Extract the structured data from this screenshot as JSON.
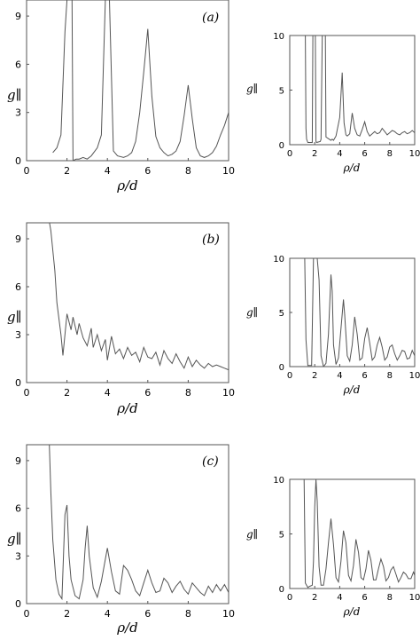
{
  "chart_data": [
    {
      "id": "a-left",
      "type": "line",
      "panel_label": "(a)",
      "xlabel": "ρ/d",
      "ylabel": "g∥",
      "xlim": [
        0,
        10
      ],
      "ylim": [
        0,
        10
      ],
      "xticks": [
        "0",
        "2",
        "4",
        "6",
        "8",
        "10"
      ],
      "yticks": [
        "0",
        "3",
        "6",
        "9"
      ],
      "series": [
        {
          "x": [
            1.3,
            1.5,
            1.7,
            1.9,
            2.0,
            2.05,
            2.1,
            2.25,
            2.3,
            2.45,
            2.6,
            2.8,
            3.0,
            3.2,
            3.5,
            3.7,
            3.9,
            4.0,
            4.1,
            4.3,
            4.5,
            4.8,
            5.0,
            5.2,
            5.4,
            5.6,
            5.8,
            6.0,
            6.2,
            6.4,
            6.6,
            6.8,
            7.0,
            7.2,
            7.4,
            7.6,
            7.8,
            8.0,
            8.2,
            8.4,
            8.6,
            8.8,
            9.0,
            9.2,
            9.4,
            9.6,
            9.8,
            10.0
          ],
          "y": [
            0.5,
            0.8,
            1.6,
            8.0,
            10.0,
            10.0,
            10.0,
            10.0,
            0.0,
            0.1,
            0.1,
            0.2,
            0.1,
            0.3,
            0.8,
            1.6,
            10.0,
            10.0,
            10.0,
            0.6,
            0.3,
            0.2,
            0.3,
            0.5,
            1.2,
            3.0,
            5.5,
            8.2,
            4.0,
            1.5,
            0.8,
            0.5,
            0.3,
            0.4,
            0.6,
            1.2,
            2.8,
            4.7,
            2.6,
            0.8,
            0.3,
            0.2,
            0.3,
            0.5,
            0.9,
            1.6,
            2.2,
            3.0
          ]
        }
      ]
    },
    {
      "id": "a-right",
      "type": "line",
      "xlabel": "ρ/d",
      "ylabel": "g∥",
      "xlim": [
        0,
        10
      ],
      "ylim": [
        0,
        10
      ],
      "xticks": [
        "0",
        "2",
        "4",
        "6",
        "8",
        "10"
      ],
      "yticks": [
        "0",
        "5",
        "10"
      ],
      "series": [
        {
          "x": [
            1.05,
            1.1,
            1.2,
            1.25,
            1.3,
            1.35,
            1.45,
            1.8,
            1.85,
            2.0,
            2.05,
            2.1,
            2.15,
            2.45,
            2.5,
            2.6,
            2.7,
            2.75,
            2.8,
            2.85,
            2.9,
            3.3,
            3.4,
            3.5,
            3.6,
            3.7,
            4.0,
            4.2,
            4.35,
            4.5,
            4.6,
            4.8,
            5.0,
            5.2,
            5.4,
            5.6,
            5.8,
            6.0,
            6.2,
            6.4,
            6.6,
            6.8,
            7.0,
            7.2,
            7.4,
            7.6,
            7.8,
            8.0,
            8.2,
            8.4,
            8.6,
            8.8,
            9.0,
            9.2,
            9.4,
            9.6,
            9.8,
            10.0
          ],
          "y": [
            10.0,
            10.0,
            10.0,
            10.0,
            1.5,
            0.5,
            0.2,
            0.2,
            10.0,
            10.0,
            10.0,
            0.3,
            0.2,
            0.3,
            0.5,
            10.0,
            10.0,
            10.0,
            10.0,
            10.0,
            0.7,
            0.4,
            0.5,
            0.4,
            0.6,
            0.8,
            2.5,
            6.6,
            2.0,
            0.9,
            0.8,
            1.0,
            2.9,
            1.5,
            0.9,
            0.8,
            1.4,
            2.1,
            1.2,
            0.8,
            1.0,
            1.2,
            1.0,
            1.1,
            1.5,
            1.2,
            0.9,
            1.1,
            1.3,
            1.2,
            1.0,
            0.9,
            1.1,
            1.2,
            1.0,
            1.1,
            1.3,
            1.1
          ]
        }
      ]
    },
    {
      "id": "b-left",
      "type": "line",
      "panel_label": "(b)",
      "xlabel": "ρ/d",
      "ylabel": "g∥",
      "xlim": [
        0,
        10
      ],
      "ylim": [
        0,
        10
      ],
      "xticks": [
        "0",
        "2",
        "4",
        "6",
        "8",
        "10"
      ],
      "yticks": [
        "0",
        "3",
        "6",
        "9"
      ],
      "series": [
        {
          "x": [
            1.0,
            1.2,
            1.4,
            1.5,
            1.7,
            1.8,
            2.0,
            2.2,
            2.3,
            2.5,
            2.6,
            2.8,
            3.0,
            3.2,
            3.3,
            3.5,
            3.7,
            3.9,
            4.0,
            4.2,
            4.4,
            4.6,
            4.8,
            5.0,
            5.2,
            5.4,
            5.6,
            5.8,
            6.0,
            6.2,
            6.4,
            6.6,
            6.8,
            7.0,
            7.2,
            7.4,
            7.6,
            7.8,
            8.0,
            8.2,
            8.4,
            8.6,
            8.8,
            9.0,
            9.2,
            9.4,
            9.6,
            9.8,
            10.0
          ],
          "y": [
            11.0,
            9.5,
            7.0,
            5.0,
            3.0,
            1.7,
            4.3,
            3.3,
            4.1,
            3.0,
            3.7,
            2.8,
            2.3,
            3.4,
            2.2,
            3.0,
            2.0,
            2.7,
            1.4,
            2.9,
            1.8,
            2.1,
            1.5,
            2.2,
            1.7,
            1.9,
            1.3,
            2.2,
            1.6,
            1.5,
            1.9,
            1.1,
            2.0,
            1.5,
            1.2,
            1.8,
            1.3,
            0.9,
            1.6,
            1.0,
            1.4,
            1.1,
            0.9,
            1.2,
            1.0,
            1.1,
            1.0,
            0.9,
            0.8
          ]
        }
      ]
    },
    {
      "id": "b-right",
      "type": "line",
      "xlabel": "ρ/d",
      "ylabel": "g∥",
      "xlim": [
        0,
        10
      ],
      "ylim": [
        0,
        10
      ],
      "xticks": [
        "0",
        "2",
        "4",
        "6",
        "8",
        "10"
      ],
      "yticks": [
        "0",
        "5",
        "10"
      ],
      "series": [
        {
          "x": [
            1.05,
            1.1,
            1.2,
            1.3,
            1.45,
            1.75,
            1.9,
            2.0,
            2.1,
            2.2,
            2.35,
            2.5,
            2.7,
            2.9,
            3.1,
            3.3,
            3.4,
            3.5,
            3.7,
            3.9,
            4.1,
            4.3,
            4.4,
            4.6,
            4.8,
            5.0,
            5.2,
            5.4,
            5.6,
            5.8,
            6.0,
            6.2,
            6.4,
            6.6,
            6.8,
            7.0,
            7.2,
            7.4,
            7.6,
            7.8,
            8.0,
            8.2,
            8.4,
            8.6,
            8.8,
            9.0,
            9.2,
            9.4,
            9.6,
            9.8,
            10.0
          ],
          "y": [
            10.0,
            10.0,
            10.0,
            2.5,
            0.1,
            0.1,
            10.0,
            10.0,
            10.0,
            10.0,
            8.0,
            1.0,
            0.0,
            0.3,
            3.0,
            8.5,
            7.0,
            2.0,
            0.2,
            0.8,
            3.5,
            6.2,
            4.8,
            1.0,
            0.5,
            2.0,
            4.6,
            3.0,
            0.6,
            0.8,
            2.6,
            3.6,
            2.2,
            0.6,
            0.9,
            2.0,
            2.7,
            1.8,
            0.6,
            0.9,
            1.8,
            2.0,
            1.2,
            0.6,
            1.0,
            1.5,
            1.4,
            0.7,
            0.8,
            1.5,
            1.0
          ]
        }
      ]
    },
    {
      "id": "c-left",
      "type": "line",
      "panel_label": "(c)",
      "xlabel": "ρ/d",
      "ylabel": "g∥",
      "xlim": [
        0,
        10
      ],
      "ylim": [
        0,
        10
      ],
      "xticks": [
        "0",
        "2",
        "4",
        "6",
        "8",
        "10"
      ],
      "yticks": [
        "0",
        "3",
        "6",
        "9"
      ],
      "series": [
        {
          "x": [
            1.1,
            1.2,
            1.3,
            1.45,
            1.6,
            1.75,
            1.9,
            2.0,
            2.1,
            2.2,
            2.4,
            2.6,
            2.8,
            2.9,
            3.0,
            3.1,
            3.3,
            3.5,
            3.7,
            3.9,
            4.0,
            4.2,
            4.4,
            4.6,
            4.8,
            5.0,
            5.2,
            5.4,
            5.6,
            5.8,
            6.0,
            6.2,
            6.4,
            6.6,
            6.8,
            7.0,
            7.2,
            7.4,
            7.6,
            7.8,
            8.0,
            8.2,
            8.4,
            8.6,
            8.8,
            9.0,
            9.2,
            9.4,
            9.6,
            9.8,
            10.0
          ],
          "y": [
            11.0,
            7.0,
            4.0,
            1.5,
            0.6,
            0.3,
            5.6,
            6.2,
            3.0,
            1.5,
            0.5,
            0.3,
            1.5,
            3.5,
            4.9,
            3.0,
            1.0,
            0.4,
            1.4,
            2.8,
            3.5,
            2.0,
            0.8,
            0.6,
            2.4,
            2.1,
            1.5,
            0.8,
            0.5,
            1.3,
            2.1,
            1.3,
            0.7,
            0.8,
            1.6,
            1.3,
            0.7,
            1.1,
            1.4,
            0.9,
            0.6,
            1.3,
            1.0,
            0.7,
            0.5,
            1.1,
            0.7,
            1.2,
            0.8,
            1.2,
            0.7
          ]
        }
      ]
    },
    {
      "id": "c-right",
      "type": "line",
      "xlabel": "ρ/d",
      "ylabel": "g∥",
      "xlim": [
        0,
        10
      ],
      "ylim": [
        0,
        10
      ],
      "xticks": [
        "0",
        "2",
        "4",
        "6",
        "8",
        "10"
      ],
      "yticks": [
        "0",
        "5",
        "10"
      ],
      "series": [
        {
          "x": [
            1.05,
            1.1,
            1.15,
            1.25,
            1.45,
            1.6,
            1.8,
            1.9,
            2.0,
            2.1,
            2.2,
            2.35,
            2.5,
            2.7,
            2.9,
            3.1,
            3.3,
            3.5,
            3.7,
            3.9,
            4.1,
            4.3,
            4.5,
            4.7,
            4.9,
            5.1,
            5.3,
            5.5,
            5.7,
            5.9,
            6.1,
            6.3,
            6.5,
            6.7,
            6.9,
            7.1,
            7.3,
            7.5,
            7.7,
            7.9,
            8.1,
            8.3,
            8.5,
            8.7,
            8.9,
            9.1,
            9.3,
            9.5,
            9.7,
            9.9,
            10.0
          ],
          "y": [
            10.0,
            10.0,
            10.0,
            0.5,
            0.1,
            0.2,
            0.3,
            2.5,
            7.5,
            10.0,
            8.0,
            2.0,
            0.3,
            0.3,
            1.8,
            4.2,
            6.4,
            4.0,
            1.0,
            0.6,
            2.5,
            5.3,
            4.2,
            1.2,
            0.7,
            2.1,
            4.5,
            3.3,
            1.0,
            0.8,
            1.8,
            3.5,
            2.6,
            0.8,
            0.8,
            1.8,
            2.7,
            2.0,
            0.7,
            1.0,
            1.7,
            2.0,
            1.3,
            0.6,
            1.0,
            1.5,
            1.3,
            0.9,
            0.9,
            1.5,
            1.2
          ]
        }
      ]
    }
  ]
}
